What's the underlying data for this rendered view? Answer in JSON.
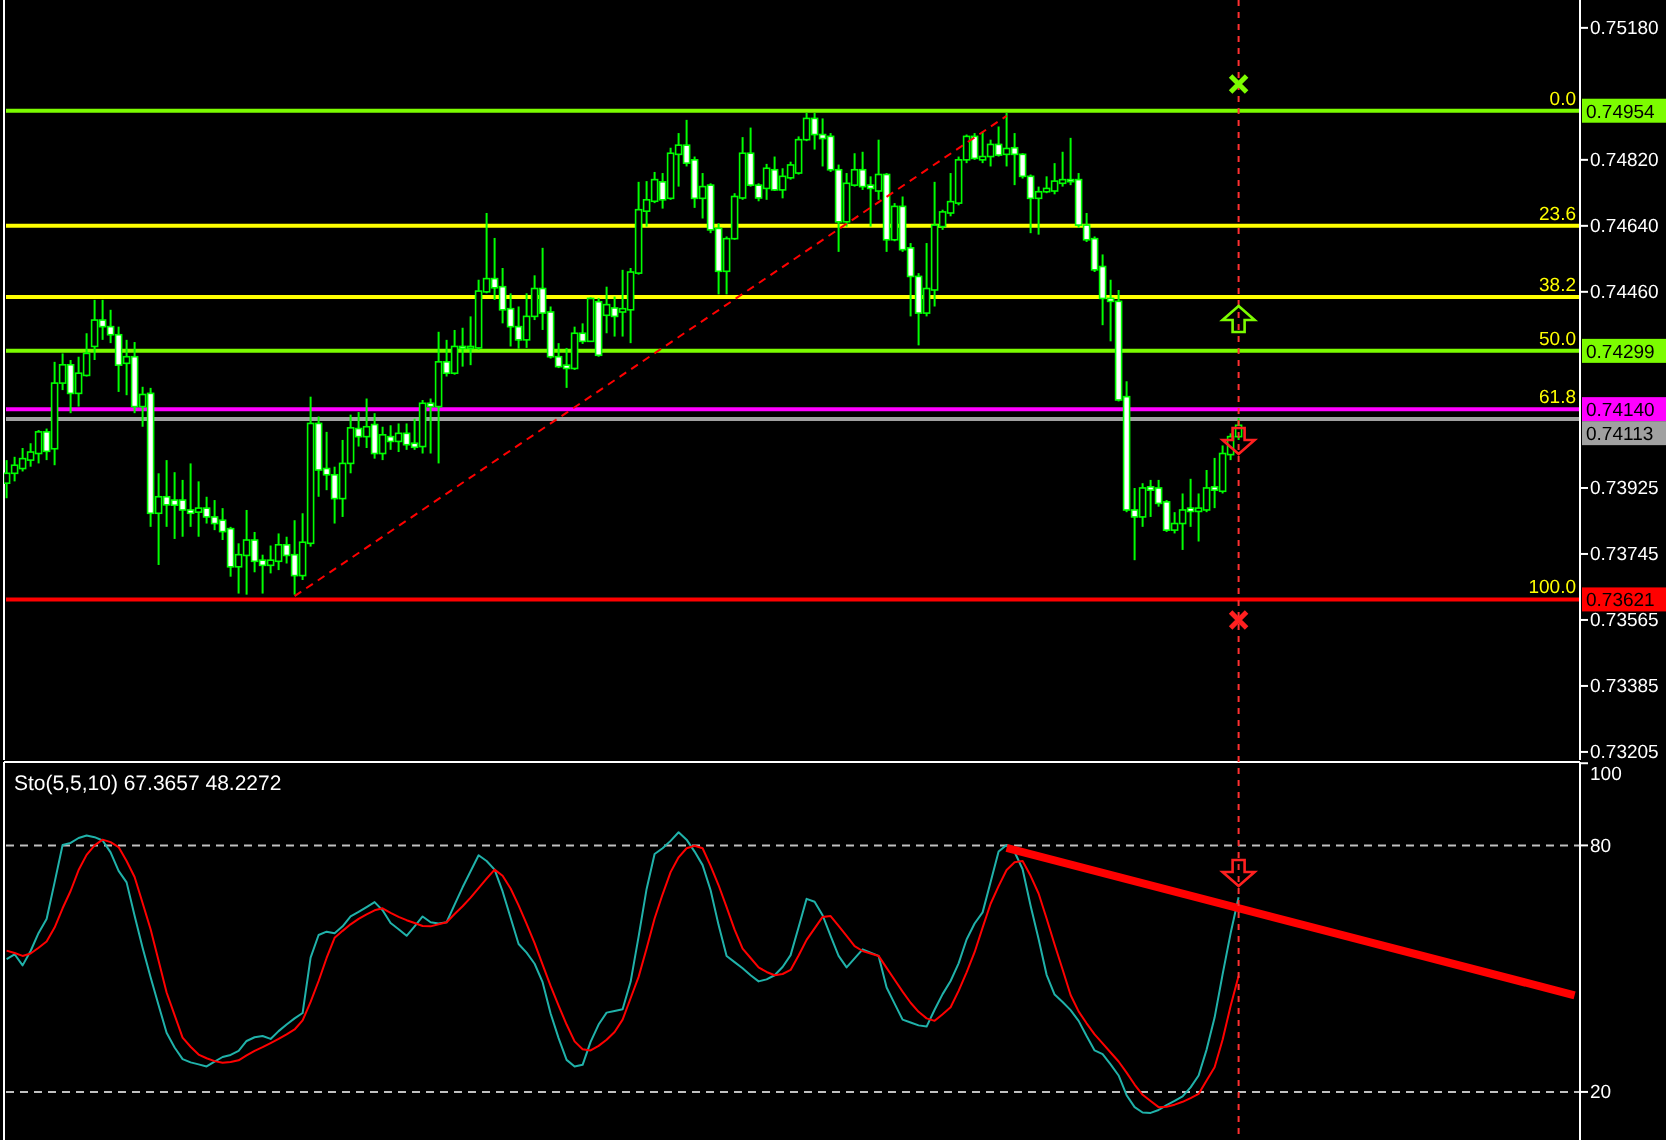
{
  "chart_data": [
    {
      "type": "candlestick",
      "color": "#00ff00",
      "categories": [
        null,
        null,
        null,
        null,
        null,
        null,
        null,
        null,
        null,
        null,
        null,
        null,
        null,
        null,
        null,
        null,
        null,
        null,
        null,
        null,
        null,
        null,
        null,
        null,
        null,
        null,
        null,
        null,
        null,
        null,
        null,
        null,
        null,
        null,
        null,
        null,
        null,
        null,
        null,
        null,
        null,
        null,
        null,
        null,
        null,
        null,
        null,
        null,
        null,
        null,
        null,
        null,
        null,
        null,
        null,
        null,
        null,
        null,
        null,
        null,
        null,
        null,
        null,
        null,
        null,
        null,
        null,
        null,
        null,
        null,
        null,
        null,
        null,
        null,
        null,
        null,
        null,
        null,
        null,
        null,
        null,
        null,
        null,
        null,
        null,
        null,
        null,
        null,
        null,
        null,
        null,
        null,
        null,
        null,
        null,
        null,
        null,
        null,
        null,
        null,
        null,
        null,
        null,
        null,
        null,
        null,
        null,
        null,
        null,
        null,
        null,
        null,
        null,
        null,
        null,
        null,
        null,
        null,
        null,
        null,
        null,
        null,
        null,
        null,
        null,
        null,
        null,
        null,
        null,
        null,
        null,
        null,
        null,
        null,
        null,
        null,
        null,
        null,
        null,
        null,
        null,
        null,
        null,
        null,
        null,
        null,
        null,
        null,
        null,
        null,
        null,
        null,
        null,
        null,
        null,
        null,
        null,
        null,
        null,
        null,
        null,
        null,
        null,
        null,
        null,
        null,
        null,
        null,
        null,
        null,
        null,
        null,
        null,
        null,
        null,
        null,
        null,
        null,
        null,
        null,
        null,
        null,
        null,
        null,
        null,
        null,
        null,
        null,
        null,
        null,
        null,
        null,
        null,
        null,
        null,
        null,
        null
      ],
      "ohlc": [
        [
          0.73938,
          0.74001,
          0.73897,
          0.73965
        ],
        [
          0.73965,
          0.7401,
          0.73943,
          0.73987
        ],
        [
          0.73978,
          0.74034,
          0.7397,
          0.74005
        ],
        [
          0.74001,
          0.74047,
          0.73983,
          0.74023
        ],
        [
          0.74019,
          0.74083,
          0.73992,
          0.74078
        ],
        [
          0.74078,
          0.74087,
          0.74001,
          0.74025
        ],
        [
          0.74032,
          0.74269,
          0.73987,
          0.74211
        ],
        [
          0.74211,
          0.74292,
          0.74192,
          0.74261
        ],
        [
          0.74261,
          0.74274,
          0.74129,
          0.74183
        ],
        [
          0.74183,
          0.74283,
          0.74147,
          0.74238
        ],
        [
          0.74232,
          0.74347,
          0.74229,
          0.74292
        ],
        [
          0.74311,
          0.74438,
          0.74274,
          0.74383
        ],
        [
          0.74383,
          0.74438,
          0.74329,
          0.74365
        ],
        [
          0.74365,
          0.74411,
          0.7432,
          0.74343
        ],
        [
          0.74343,
          0.74365,
          0.74187,
          0.7426
        ],
        [
          0.74265,
          0.74329,
          0.74178,
          0.74283
        ],
        [
          0.74283,
          0.74323,
          0.74129,
          0.74147
        ],
        [
          0.74147,
          0.74201,
          0.74092,
          0.7418
        ],
        [
          0.74183,
          0.74198,
          0.73819,
          0.73856
        ],
        [
          0.73856,
          0.73965,
          0.73715,
          0.73901
        ],
        [
          0.73901,
          0.74001,
          0.73819,
          0.73879
        ],
        [
          0.73892,
          0.73968,
          0.73786,
          0.73878
        ],
        [
          0.73892,
          0.73947,
          0.73792,
          0.73865
        ],
        [
          0.73865,
          0.73992,
          0.73819,
          0.73856
        ],
        [
          0.73859,
          0.73943,
          0.73792,
          0.7387
        ],
        [
          0.7387,
          0.73901,
          0.73828,
          0.73846
        ],
        [
          0.73846,
          0.73892,
          0.7381,
          0.73828
        ],
        [
          0.73837,
          0.7387,
          0.73783,
          0.73806
        ],
        [
          0.73814,
          0.73819,
          0.73683,
          0.7371
        ],
        [
          0.7371,
          0.73774,
          0.73637,
          0.73743
        ],
        [
          0.73741,
          0.73865,
          0.73634,
          0.73783
        ],
        [
          0.73783,
          0.73805,
          0.73695,
          0.73725
        ],
        [
          0.73728,
          0.73743,
          0.73637,
          0.73714
        ],
        [
          0.73714,
          0.73768,
          0.73692,
          0.73728
        ],
        [
          0.73725,
          0.73801,
          0.73701,
          0.7377
        ],
        [
          0.7377,
          0.73792,
          0.73719,
          0.73741
        ],
        [
          0.73743,
          0.73837,
          0.73634,
          0.73686
        ],
        [
          0.73686,
          0.73856,
          0.73674,
          0.73777
        ],
        [
          0.73774,
          0.74174,
          0.73765,
          0.74101
        ],
        [
          0.74101,
          0.7412,
          0.73901,
          0.73974
        ],
        [
          0.73978,
          0.74078,
          0.73919,
          0.73961
        ],
        [
          0.73961,
          0.73983,
          0.73828,
          0.73896
        ],
        [
          0.73896,
          0.74056,
          0.73846,
          0.73992
        ],
        [
          0.73992,
          0.74125,
          0.73965,
          0.74089
        ],
        [
          0.74087,
          0.74132,
          0.74038,
          0.74065
        ],
        [
          0.74065,
          0.74169,
          0.74034,
          0.74092
        ],
        [
          0.74098,
          0.74129,
          0.74005,
          0.74019
        ],
        [
          0.74019,
          0.74092,
          0.74001,
          0.7407
        ],
        [
          0.74065,
          0.74096,
          0.74029,
          0.74052
        ],
        [
          0.74052,
          0.74101,
          0.74023,
          0.74074
        ],
        [
          0.74074,
          0.74101,
          0.74029,
          0.74043
        ],
        [
          0.74047,
          0.74114,
          0.74029,
          0.74036
        ],
        [
          0.74038,
          0.74165,
          0.74019,
          0.74156
        ],
        [
          0.74156,
          0.74169,
          0.74019,
          0.74147
        ],
        [
          0.74147,
          0.74351,
          0.73992,
          0.74269
        ],
        [
          0.74269,
          0.74329,
          0.74229,
          0.74238
        ],
        [
          0.74238,
          0.74356,
          0.74234,
          0.74311
        ],
        [
          0.74311,
          0.74362,
          0.74256,
          0.74307
        ],
        [
          0.74307,
          0.74393,
          0.7426,
          0.74311
        ],
        [
          0.74307,
          0.74493,
          0.74302,
          0.74462
        ],
        [
          0.7446,
          0.74675,
          0.74456,
          0.74496
        ],
        [
          0.74496,
          0.74607,
          0.74438,
          0.74471
        ],
        [
          0.74474,
          0.74525,
          0.74374,
          0.74411
        ],
        [
          0.74414,
          0.74456,
          0.74311,
          0.74365
        ],
        [
          0.74365,
          0.7442,
          0.74305,
          0.74329
        ],
        [
          0.74329,
          0.74456,
          0.74307,
          0.74393
        ],
        [
          0.74393,
          0.74505,
          0.74383,
          0.74469
        ],
        [
          0.74469,
          0.7458,
          0.74356,
          0.74402
        ],
        [
          0.74405,
          0.7442,
          0.74278,
          0.74283
        ],
        [
          0.74283,
          0.7432,
          0.74252,
          0.74256
        ],
        [
          0.7426,
          0.74307,
          0.74198,
          0.74251
        ],
        [
          0.74251,
          0.74365,
          0.74247,
          0.74347
        ],
        [
          0.74347,
          0.74374,
          0.74318,
          0.74325
        ],
        [
          0.74325,
          0.74445,
          0.74325,
          0.74442
        ],
        [
          0.74433,
          0.74443,
          0.74283,
          0.74287
        ],
        [
          0.74396,
          0.74474,
          0.74347,
          0.74425
        ],
        [
          0.74416,
          0.74447,
          0.74338,
          0.74393
        ],
        [
          0.74405,
          0.7452,
          0.74338,
          0.74414
        ],
        [
          0.74411,
          0.74525,
          0.7432,
          0.74514
        ],
        [
          0.74511,
          0.7476,
          0.74507,
          0.74684
        ],
        [
          0.7468,
          0.74762,
          0.74638,
          0.74711
        ],
        [
          0.74707,
          0.74787,
          0.74702,
          0.74766
        ],
        [
          0.7476,
          0.74784,
          0.74687,
          0.74711
        ],
        [
          0.74715,
          0.74853,
          0.74711,
          0.74838
        ],
        [
          0.74835,
          0.74893,
          0.74747,
          0.7486
        ],
        [
          0.7486,
          0.74929,
          0.74802,
          0.74811
        ],
        [
          0.7482,
          0.74829,
          0.74689,
          0.74715
        ],
        [
          0.74715,
          0.74784,
          0.7466,
          0.74747
        ],
        [
          0.74751,
          0.74756,
          0.7462,
          0.74629
        ],
        [
          0.74633,
          0.74647,
          0.74453,
          0.74516
        ],
        [
          0.74516,
          0.74611,
          0.74453,
          0.74605
        ],
        [
          0.74605,
          0.74729,
          0.74602,
          0.7472
        ],
        [
          0.74716,
          0.74882,
          0.74711,
          0.74838
        ],
        [
          0.74838,
          0.74908,
          0.74747,
          0.74751
        ],
        [
          0.74751,
          0.74756,
          0.74707,
          0.74716
        ],
        [
          0.74742,
          0.74809,
          0.74711,
          0.74797
        ],
        [
          0.74793,
          0.74829,
          0.74735,
          0.74738
        ],
        [
          0.74738,
          0.74797,
          0.74715,
          0.74775
        ],
        [
          0.74771,
          0.74815,
          0.74766,
          0.74806
        ],
        [
          0.74784,
          0.74884,
          0.7478,
          0.74875
        ],
        [
          0.74875,
          0.74948,
          0.74871,
          0.74933
        ],
        [
          0.74933,
          0.74948,
          0.74848,
          0.74889
        ],
        [
          0.74889,
          0.74933,
          0.74802,
          0.74878
        ],
        [
          0.74884,
          0.74893,
          0.74787,
          0.74793
        ],
        [
          0.74793,
          0.74807,
          0.74569,
          0.74651
        ],
        [
          0.74651,
          0.74784,
          0.74638,
          0.74756
        ],
        [
          0.74751,
          0.74838,
          0.74747,
          0.74793
        ],
        [
          0.74793,
          0.74842,
          0.74738,
          0.74747
        ],
        [
          0.74751,
          0.74775,
          0.74638,
          0.74742
        ],
        [
          0.74735,
          0.74875,
          0.74711,
          0.7478
        ],
        [
          0.7478,
          0.74784,
          0.74569,
          0.74602
        ],
        [
          0.74602,
          0.74702,
          0.74598,
          0.74693
        ],
        [
          0.74693,
          0.7472,
          0.74569,
          0.74575
        ],
        [
          0.7458,
          0.74593,
          0.74393,
          0.74502
        ],
        [
          0.74502,
          0.74511,
          0.74314,
          0.74402
        ],
        [
          0.74402,
          0.74593,
          0.74393,
          0.74469
        ],
        [
          0.74465,
          0.7476,
          0.7442,
          0.74642
        ],
        [
          0.74638,
          0.74684,
          0.74629,
          0.74678
        ],
        [
          0.74675,
          0.74784,
          0.74666,
          0.74706
        ],
        [
          0.74702,
          0.74829,
          0.74696,
          0.7482
        ],
        [
          0.7482,
          0.74889,
          0.74811,
          0.74884
        ],
        [
          0.74884,
          0.74893,
          0.7482,
          0.74824
        ],
        [
          0.7482,
          0.74897,
          0.74811,
          0.74829
        ],
        [
          0.74829,
          0.74875,
          0.74802,
          0.74862
        ],
        [
          0.74862,
          0.74911,
          0.74829,
          0.74833
        ],
        [
          0.74835,
          0.74948,
          0.74802,
          0.74851
        ],
        [
          0.74853,
          0.74893,
          0.74751,
          0.74835
        ],
        [
          0.74835,
          0.74838,
          0.74769,
          0.74775
        ],
        [
          0.74775,
          0.7478,
          0.7462,
          0.74715
        ],
        [
          0.74715,
          0.74747,
          0.74616,
          0.74733
        ],
        [
          0.74733,
          0.74775,
          0.74729,
          0.74742
        ],
        [
          0.74735,
          0.74811,
          0.74726,
          0.74762
        ],
        [
          0.74756,
          0.74842,
          0.74747,
          0.74766
        ],
        [
          0.74766,
          0.7488,
          0.74751,
          0.74762
        ],
        [
          0.74766,
          0.74784,
          0.74635,
          0.74642
        ],
        [
          0.74642,
          0.74675,
          0.74596,
          0.74602
        ],
        [
          0.74605,
          0.74611,
          0.74514,
          0.7452
        ],
        [
          0.74529,
          0.74562,
          0.74369,
          0.74442
        ],
        [
          0.74442,
          0.74493,
          0.74325,
          0.74434
        ],
        [
          0.74434,
          0.74465,
          0.74161,
          0.74165
        ],
        [
          0.74174,
          0.74216,
          0.73859,
          0.73865
        ],
        [
          0.73865,
          0.73925,
          0.73728,
          0.73846
        ],
        [
          0.73846,
          0.73938,
          0.73819,
          0.73925
        ],
        [
          0.73928,
          0.73947,
          0.73846,
          0.73919
        ],
        [
          0.73925,
          0.73947,
          0.73874,
          0.73883
        ],
        [
          0.73887,
          0.73892,
          0.73805,
          0.7381
        ],
        [
          0.7381,
          0.73859,
          0.73801,
          0.73828
        ],
        [
          0.73828,
          0.7391,
          0.73756,
          0.73865
        ],
        [
          0.7387,
          0.7395,
          0.73819,
          0.73861
        ],
        [
          0.73861,
          0.7391,
          0.73779,
          0.7387
        ],
        [
          0.73865,
          0.73974,
          0.73859,
          0.73925
        ],
        [
          0.73928,
          0.74007,
          0.7387,
          0.73919
        ],
        [
          0.73916,
          0.74041,
          0.7391,
          0.74019
        ],
        [
          0.74016,
          0.74074,
          0.74001,
          0.74065
        ],
        [
          0.74065,
          0.74116,
          0.74056,
          0.74096
        ],
        null,
        null,
        null,
        null,
        null,
        null,
        null,
        null,
        null,
        null,
        null,
        null,
        null,
        null,
        null,
        null,
        null,
        null,
        null,
        null,
        null,
        null,
        null,
        null,
        null,
        null,
        null,
        null,
        null,
        null,
        null,
        null,
        null,
        null,
        null,
        null,
        null,
        null,
        null,
        null,
        null,
        null
      ],
      "series": [
        {
          "type": "line",
          "color": "#ff0000",
          "line_style": "dashed",
          "values": [
            null,
            null,
            null,
            null,
            null,
            null,
            null,
            null,
            null,
            null,
            null,
            null,
            null,
            null,
            null,
            null,
            null,
            null,
            null,
            null,
            null,
            null,
            null,
            null,
            null,
            null,
            null,
            null,
            null,
            null,
            null,
            null,
            null,
            null,
            null,
            null,
            0.7363,
            null,
            null,
            null,
            null,
            null,
            null,
            null,
            null,
            null,
            null,
            null,
            null,
            null,
            null,
            null,
            null,
            null,
            null,
            null,
            null,
            null,
            null,
            null,
            null,
            null,
            null,
            null,
            null,
            null,
            null,
            null,
            null,
            null,
            null,
            null,
            null,
            null,
            null,
            null,
            null,
            null,
            null,
            null,
            null,
            null,
            null,
            null,
            null,
            null,
            null,
            null,
            null,
            null,
            null,
            null,
            null,
            null,
            null,
            null,
            null,
            null,
            null,
            null,
            null,
            null,
            null,
            null,
            null,
            null,
            null,
            null,
            null,
            null,
            null,
            null,
            null,
            null,
            null,
            null,
            null,
            null,
            null,
            null,
            null,
            null,
            null,
            null,
            null,
            0.7494,
            null,
            null,
            null,
            null,
            null,
            null,
            null,
            null,
            null,
            null,
            null,
            null,
            null,
            null,
            null,
            null,
            null,
            null,
            null,
            null,
            null,
            null,
            null,
            null,
            null,
            null,
            null,
            null,
            null,
            null,
            null,
            null,
            null,
            null,
            null,
            null,
            null,
            null,
            null,
            null,
            null,
            null,
            null,
            null,
            null,
            null,
            null,
            null,
            null,
            null,
            null,
            null,
            null,
            null,
            null,
            null,
            null,
            null,
            null,
            null,
            null,
            null,
            null,
            null,
            null,
            null,
            null,
            null,
            null,
            null,
            null
          ]
        }
      ],
      "ylim": [
        0.73183,
        0.75256
      ],
      "yticks": [
        {
          "value": 0.7518,
          "label": "0.75180"
        },
        {
          "value": 0.7482,
          "label": "0.74820"
        },
        {
          "value": 0.7464,
          "label": "0.74640"
        },
        {
          "value": 0.7446,
          "label": "0.74460"
        },
        0.73925,
        0.73745,
        0.73565,
        0.73385,
        0.73205
      ],
      "tick_labels": "y",
      "ref_lines": [
        {
          "axis": "y",
          "value": 0.74954,
          "label": "0.74954",
          "color": "#7cfc00"
        },
        {
          "axis": "y",
          "value": 0.7464,
          "label": null,
          "color": "#ffff00"
        },
        {
          "axis": "y",
          "value": 0.74446,
          "label": null,
          "color": "#ffff00"
        },
        {
          "axis": "y",
          "value": 0.74299,
          "label": "0.74299",
          "color": "#7cfc00"
        },
        {
          "axis": "y",
          "value": 0.7414,
          "label": "0.74140",
          "color": "#ff00ff"
        },
        {
          "axis": "y",
          "value": 0.74113,
          "label": "0.74113",
          "color": "#a0a0a0"
        },
        {
          "axis": "y",
          "value": 0.73621,
          "label": "0.73621",
          "color": "#ff0000"
        }
      ],
      "annotations": [
        {
          "text": "0.0",
          "y": 0.74954
        },
        {
          "text": "23.6",
          "y": 0.7464
        },
        {
          "text": "38.2",
          "y": 0.74446
        },
        {
          "text": "50.0",
          "y": 0.74299
        },
        {
          "text": "61.8",
          "y": 0.7414
        },
        {
          "text": "100.0",
          "y": 0.73621
        }
      ]
    },
    {
      "type": "line",
      "title": "Sto(5,5,10) 67.3657 48.2272",
      "categories": [
        null,
        null,
        null,
        null,
        null,
        null,
        null,
        null,
        null,
        null,
        null,
        null,
        null,
        null,
        null,
        null,
        null,
        null,
        null,
        null,
        null,
        null,
        null,
        null,
        null,
        null,
        null,
        null,
        null,
        null,
        null,
        null,
        null,
        null,
        null,
        null,
        null,
        null,
        null,
        null,
        null,
        null,
        null,
        null,
        null,
        null,
        null,
        null,
        null,
        null,
        null,
        null,
        null,
        null,
        null,
        null,
        null,
        null,
        null,
        null,
        null,
        null,
        null,
        null,
        null,
        null,
        null,
        null,
        null,
        null,
        null,
        null,
        null,
        null,
        null,
        null,
        null,
        null,
        null,
        null,
        null,
        null,
        null,
        null,
        null,
        null,
        null,
        null,
        null,
        null,
        null,
        null,
        null,
        null,
        null,
        null,
        null,
        null,
        null,
        null,
        null,
        null,
        null,
        null,
        null,
        null,
        null,
        null,
        null,
        null,
        null,
        null,
        null,
        null,
        null,
        null,
        null,
        null,
        null,
        null,
        null,
        null,
        null,
        null,
        null,
        null,
        null,
        null,
        null,
        null,
        null,
        null,
        null,
        null,
        null,
        null,
        null,
        null,
        null,
        null,
        null,
        null,
        null,
        null,
        null,
        null,
        null,
        null,
        null,
        null,
        null,
        null,
        null,
        null,
        null,
        null,
        null,
        null,
        null,
        null,
        null,
        null,
        null,
        null,
        null,
        null,
        null,
        null,
        null,
        null,
        null,
        null,
        null,
        null,
        null,
        null,
        null,
        null,
        null,
        null,
        null,
        null,
        null,
        null,
        null,
        null,
        null,
        null,
        null,
        null,
        null,
        null,
        null,
        null,
        null,
        null,
        null
      ],
      "series": [
        {
          "color": "#20b2aa",
          "values": [
            52.3,
            53.5,
            50.8,
            54.3,
            58.7,
            62.1,
            71,
            80.1,
            80.6,
            81.8,
            82.4,
            82,
            81.2,
            78.3,
            73.8,
            71,
            62.9,
            55.1,
            47.9,
            41.1,
            34.4,
            30.8,
            28,
            27.2,
            26.7,
            26.2,
            27.4,
            28.5,
            29,
            30,
            32.4,
            33.3,
            33.6,
            32.9,
            34.8,
            36.4,
            37.9,
            39.2,
            52.7,
            58.2,
            59,
            58.6,
            60.3,
            62.7,
            63.8,
            65,
            66.2,
            64.2,
            61.1,
            59.6,
            58,
            60.3,
            62.7,
            61.3,
            61,
            61.3,
            65.6,
            69.8,
            73.7,
            77.6,
            76.2,
            74.1,
            68.8,
            62.4,
            56,
            53.9,
            51.2,
            46.7,
            39.1,
            33.1,
            27.8,
            26.2,
            26.6,
            32.2,
            36.4,
            39.3,
            39.7,
            40.1,
            46.8,
            57.8,
            69.4,
            77.9,
            79.3,
            81.1,
            83.2,
            81.4,
            78.5,
            75.2,
            69.1,
            60.6,
            53.1,
            51.6,
            50.1,
            48.4,
            46.9,
            47.4,
            48.4,
            50.4,
            53.3,
            60.1,
            67,
            66.3,
            63,
            58,
            53.1,
            50.3,
            52.5,
            54.7,
            53.9,
            53.1,
            45.4,
            41.5,
            37.6,
            36.9,
            36.2,
            35.9,
            40,
            43.8,
            47,
            51.3,
            57.1,
            61,
            63.7,
            71.1,
            78.5,
            80.1,
            78.4,
            74.2,
            65.3,
            57.2,
            48.5,
            43.7,
            41.9,
            39.9,
            37.3,
            33.6,
            30.1,
            29.2,
            26.7,
            24,
            19.2,
            16.3,
            15,
            14.9,
            15.6,
            16.8,
            17.8,
            18.9,
            21.1,
            24,
            30.3,
            38.1,
            48.6,
            58.6,
            67.4,
            null,
            null,
            null,
            null,
            null,
            null,
            null,
            null,
            null,
            null,
            null,
            null,
            null,
            null,
            null,
            null,
            null,
            null,
            null,
            null,
            null,
            null,
            null,
            null,
            null,
            null,
            null,
            null,
            null,
            null,
            null,
            null,
            null,
            null,
            null,
            null,
            null,
            null,
            null,
            null,
            null,
            null
          ]
        },
        {
          "color": "#ff0000",
          "values": [
            54.4,
            53.8,
            53.1,
            53.7,
            55.1,
            56.6,
            60,
            64.7,
            68.9,
            74,
            77.7,
            80,
            81.4,
            80.8,
            79.6,
            76.2,
            72.3,
            66,
            59.6,
            51.9,
            44.2,
            38.7,
            33.2,
            31,
            29.1,
            28.2,
            27.5,
            27.1,
            27.3,
            27.7,
            28.9,
            30,
            30.9,
            31.9,
            32.9,
            34,
            35.2,
            37.4,
            41.9,
            47,
            52.6,
            57.5,
            59.2,
            60.8,
            62.1,
            63.2,
            64.2,
            64.7,
            63.6,
            62.6,
            61.8,
            61.1,
            60.4,
            60.3,
            60.8,
            61.3,
            63.3,
            65.2,
            67.3,
            69.6,
            71.9,
            74.1,
            72.6,
            69.5,
            65.4,
            60.9,
            56.2,
            51,
            45.8,
            41,
            36.4,
            32.3,
            30.4,
            30.1,
            31.2,
            32.7,
            34.6,
            37.6,
            42.8,
            48,
            54.9,
            62.2,
            68.1,
            73.5,
            77.1,
            79.3,
            79.9,
            79.3,
            75,
            70.3,
            65,
            59.5,
            54.9,
            52.6,
            50.3,
            49.2,
            48.4,
            48.7,
            49.7,
            53.2,
            57,
            59.8,
            62.6,
            62.8,
            60.4,
            58,
            55.5,
            54.3,
            53.7,
            53.1,
            50.2,
            47.3,
            44.4,
            41.7,
            39.5,
            37.9,
            37.3,
            38.9,
            40.6,
            44.6,
            49.1,
            54,
            60,
            65.8,
            70.1,
            74,
            75.9,
            76.2,
            72.6,
            68.3,
            62.2,
            55.9,
            49.8,
            43.6,
            39.6,
            36.7,
            34,
            31.8,
            29.6,
            27.4,
            24.7,
            21.8,
            19.3,
            17.8,
            16.3,
            16.4,
            16.9,
            17.6,
            18.5,
            19.5,
            22.8,
            26,
            32.7,
            40.9,
            48.2,
            null,
            null,
            null,
            null,
            null,
            null,
            null,
            null,
            null,
            null,
            null,
            null,
            null,
            null,
            null,
            null,
            null,
            null,
            null,
            null,
            null,
            null,
            null,
            null,
            null,
            null,
            null,
            null,
            null,
            null,
            null,
            null,
            null,
            null,
            null,
            null,
            null,
            null,
            null,
            null,
            null,
            null
          ]
        },
        {
          "color": "#ff0000",
          "values": [
            null,
            null,
            null,
            null,
            null,
            null,
            null,
            null,
            null,
            null,
            null,
            null,
            null,
            null,
            null,
            null,
            null,
            null,
            null,
            null,
            null,
            null,
            null,
            null,
            null,
            null,
            null,
            null,
            null,
            null,
            null,
            null,
            null,
            null,
            null,
            null,
            null,
            null,
            null,
            null,
            null,
            null,
            null,
            null,
            null,
            null,
            null,
            null,
            null,
            null,
            null,
            null,
            null,
            null,
            null,
            null,
            null,
            null,
            null,
            null,
            null,
            null,
            null,
            null,
            null,
            null,
            null,
            null,
            null,
            null,
            null,
            null,
            null,
            null,
            null,
            null,
            null,
            null,
            null,
            null,
            null,
            null,
            null,
            null,
            null,
            null,
            null,
            null,
            null,
            null,
            null,
            null,
            null,
            null,
            null,
            null,
            null,
            null,
            null,
            null,
            null,
            null,
            null,
            null,
            null,
            null,
            null,
            null,
            null,
            null,
            null,
            null,
            null,
            null,
            null,
            null,
            null,
            null,
            null,
            null,
            null,
            null,
            null,
            null,
            null,
            79.4,
            null,
            null,
            null,
            null,
            null,
            null,
            null,
            null,
            null,
            null,
            null,
            null,
            null,
            null,
            null,
            null,
            null,
            null,
            null,
            null,
            null,
            null,
            null,
            null,
            null,
            null,
            null,
            null,
            null,
            null,
            null,
            null,
            null,
            null,
            null,
            null,
            null,
            null,
            null,
            null,
            null,
            null,
            null,
            null,
            null,
            null,
            null,
            null,
            null,
            null,
            null,
            null,
            null,
            null,
            null,
            null,
            null,
            null,
            null,
            null,
            null,
            null,
            null,
            null,
            null,
            null,
            null,
            null,
            null,
            null,
            43.5
          ]
        }
      ],
      "ylim": [
        8.3,
        100.3
      ],
      "yticks": [
        100,
        80,
        20
      ],
      "tick_labels": "y",
      "ref_lines": [
        {
          "axis": "y",
          "value": 80,
          "label": null,
          "color": "#c0c0c0",
          "line_style": "dashed"
        },
        {
          "axis": "y",
          "value": 20,
          "label": null,
          "color": "#c0c0c0",
          "line_style": "dashed"
        }
      ]
    }
  ]
}
